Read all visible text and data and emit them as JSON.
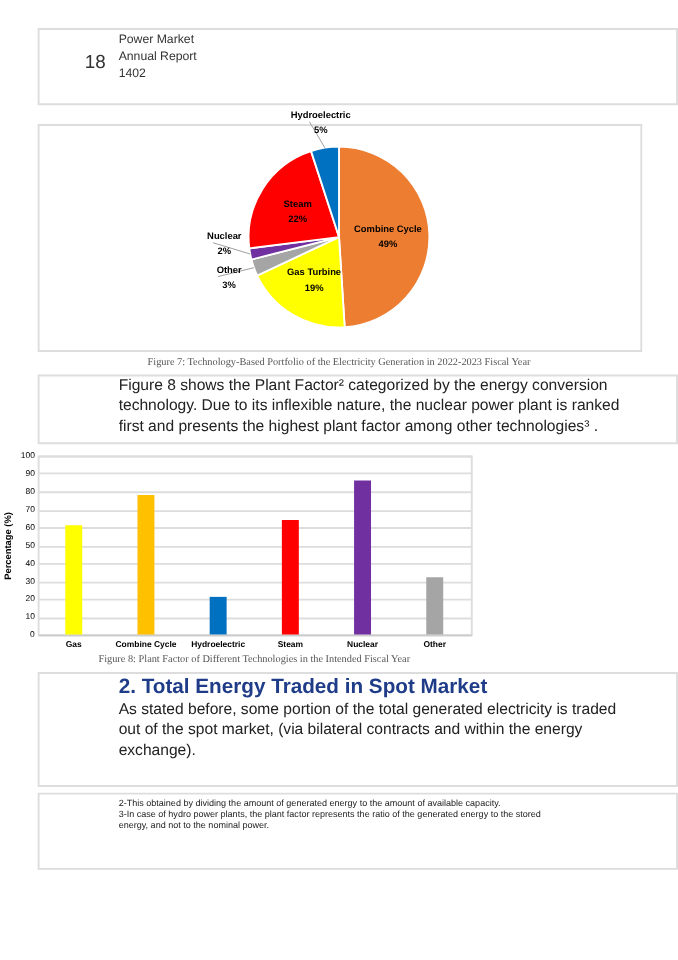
{
  "chart_data": [
    {
      "type": "pie",
      "title": "Figure 7: Technology-Based Portfolio of the Electricity Generation in 2022-2023 Fiscal Year",
      "categories": [
        "Combine Cycle",
        "Gas Turbine",
        "Other",
        "Nuclear",
        "Steam",
        "Hydroelectric"
      ],
      "values": [
        49,
        19,
        3,
        2,
        22,
        5
      ],
      "colors": [
        "#ed7d31",
        "#ffff00",
        "#a5a5a5",
        "#7030a0",
        "#ff0000",
        "#0070c0"
      ],
      "value_labels": [
        "49%",
        "19%",
        "3%",
        "2%",
        "22%",
        "5%"
      ],
      "annotations": [
        "18",
        "Power Market",
        "Annual Report",
        "1402"
      ]
    },
    {
      "type": "bar",
      "title": "Figure 8: Plant Factor of Different Technologies in the Intended Fiscal Year",
      "categories": [
        "Gas",
        "Combine Cycle",
        "Hydroelectric",
        "Steam",
        "Nuclear",
        "Other"
      ],
      "values": [
        61,
        78,
        21,
        64,
        86,
        32
      ],
      "colors": [
        "#ffff00",
        "#ffc000",
        "#0070c0",
        "#ff0000",
        "#7030a0",
        "#a5a5a5"
      ],
      "ylabel": "Percentage (%)",
      "ylim": [
        0,
        100
      ],
      "yticks": [
        0,
        10,
        20,
        30,
        40,
        50,
        60,
        70,
        80,
        90,
        100
      ],
      "grid": "y",
      "annotations": [
        "Figure 8 shows the Plant Factor² categorized by the energy conversion",
        "technology. Due to its inflexible nature, the nuclear power plant is ranked",
        "first and presents the highest plant factor among other technologies³ .",
        "2. Total Energy Traded in Spot Market",
        "As stated before, some portion of the total generated electricity is traded",
        "out of the spot market, (via bilateral contracts and within the energy",
        "exchange).",
        "2-This obtained by dividing the amount of generated energy to the amount of available capacity.",
        "3-In case of hydro power plants, the plant factor represents the ratio of the generated energy to the stored",
        "energy, and not to the nominal power."
      ]
    }
  ]
}
